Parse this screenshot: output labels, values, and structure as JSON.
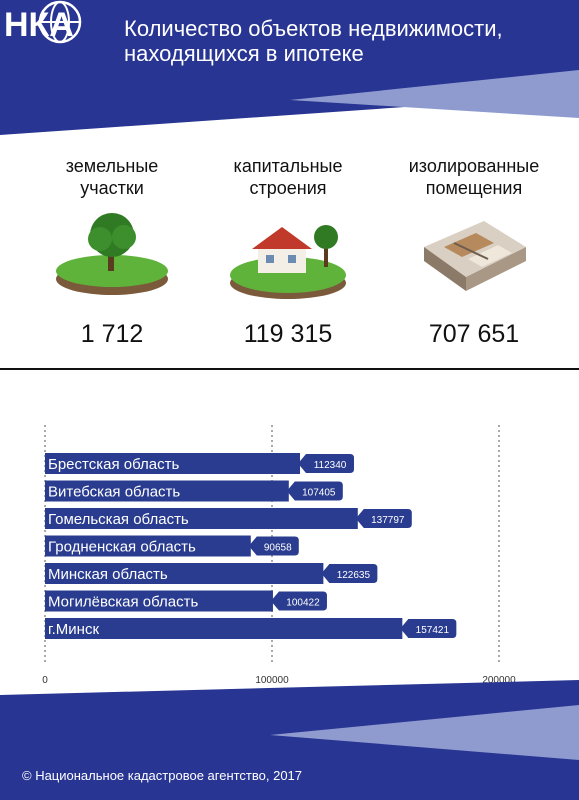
{
  "header": {
    "title_line1": "Количество объектов недвижимости,",
    "title_line2": "находящихся в ипотеке",
    "logo_text": "НКА"
  },
  "categories": [
    {
      "label_line1": "земельные",
      "label_line2": "участки",
      "value": "1 712",
      "icon": "land-plot-icon"
    },
    {
      "label_line1": "капитальные",
      "label_line2": "строения",
      "value": "119 315",
      "icon": "house-icon"
    },
    {
      "label_line1": "изолированные",
      "label_line2": "помещения",
      "value": "707 651",
      "icon": "apartment-icon"
    }
  ],
  "colors": {
    "primary": "#283593",
    "accent": "#7f8ec9",
    "bar": "#2a3c8f",
    "text": "#111111"
  },
  "chart_data": {
    "type": "bar",
    "orientation": "horizontal",
    "categories": [
      "Брестская область",
      "Витебская область",
      "Гомельская область",
      "Гродненская область",
      "Минская область",
      "Могилёвская область",
      "г.Минск"
    ],
    "values": [
      112340,
      107405,
      137797,
      90658,
      122635,
      100422,
      157421
    ],
    "xlim": [
      0,
      200000
    ],
    "xticks": [
      "0",
      "100000",
      "200000"
    ],
    "grid": true
  },
  "footer": {
    "copyright": "© Национальное кадастровое агентство, 2017"
  }
}
